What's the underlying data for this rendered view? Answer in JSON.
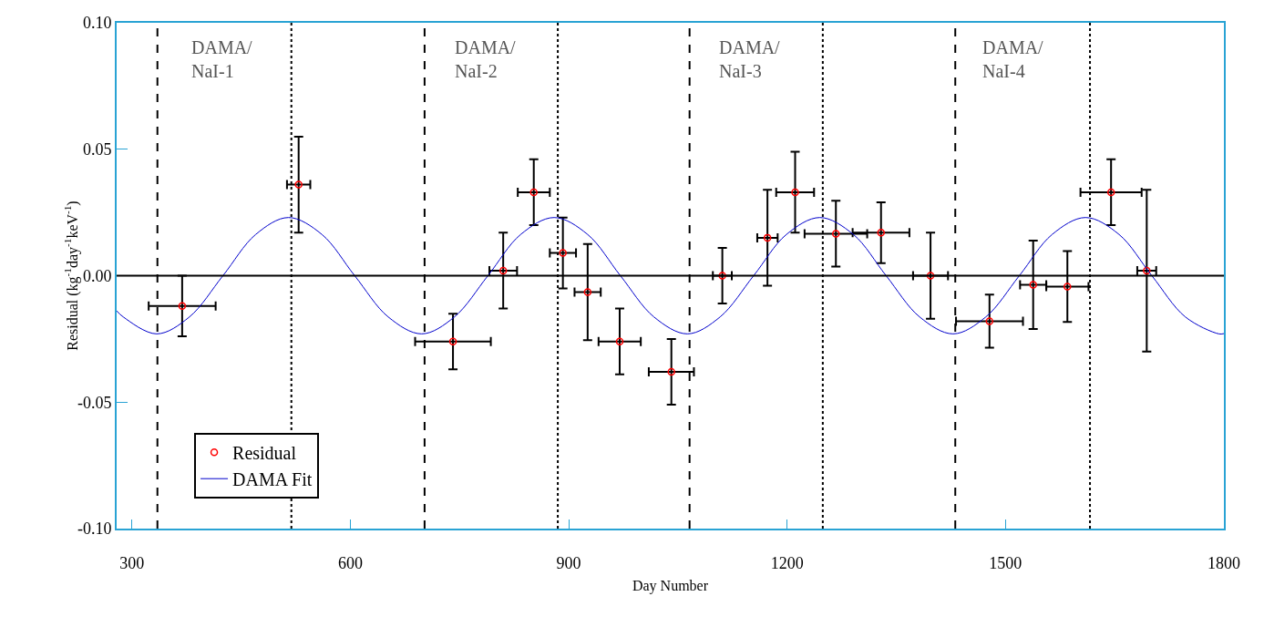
{
  "chart_data": {
    "type": "scatter",
    "xlabel": "Day Number",
    "ylabel": "Residual (kg$^{-1}$day$^{-1}$keV$^{-1}$)",
    "xlim": [
      279,
      1800
    ],
    "xticks": [
      300,
      600,
      900,
      1200,
      1500,
      1800
    ],
    "ylim": [
      -0.1,
      0.1
    ],
    "yticks": [
      {
        "value": -0.1,
        "label": "-0.10"
      },
      {
        "value": -0.05,
        "label": "-0.05"
      },
      {
        "value": 0,
        "label": "0.00"
      },
      {
        "value": 0.05,
        "label": "0.05"
      },
      {
        "value": 0.1,
        "label": "0.10"
      }
    ],
    "grid": false,
    "legend": "bottom left",
    "marker": "circle",
    "series": [
      {
        "name": "Residual",
        "color": "#ff0000",
        "x": [
          369,
          529,
          741,
          810,
          852,
          892,
          926,
          970,
          1041,
          1111,
          1173,
          1211,
          1267,
          1329,
          1397,
          1478,
          1538,
          1585,
          1645,
          1694
        ],
        "values": [
          -0.012,
          0.036,
          -0.026,
          0.002,
          0.033,
          0.009,
          -0.0065,
          -0.026,
          -0.038,
          0,
          0.015,
          0.033,
          0.0166,
          0.017,
          0,
          -0.018,
          -0.0036,
          -0.0043,
          0.033,
          0.002
        ],
        "errors": [
          0.012,
          0.019,
          0.011,
          0.015,
          0.013,
          0.014,
          0.019,
          0.013,
          0.013,
          0.011,
          0.019,
          0.016,
          0.013,
          0.012,
          0.017,
          0.0105,
          0.0175,
          0.014,
          0.013,
          0.032
        ],
        "xerrors": [
          46,
          16,
          52,
          19,
          22,
          18,
          18,
          29,
          31,
          13,
          14,
          26,
          43,
          39,
          24,
          46,
          18,
          29,
          42,
          13
        ]
      },
      {
        "name": "DAMA Fit",
        "type": "line",
        "color": "#0000cc",
        "marker": "none",
        "line_style": "solid",
        "x": [
          279,
          288,
          334,
          379,
          425,
          470,
          515,
          561,
          606,
          652,
          698,
          743,
          789,
          834,
          880,
          926,
          971,
          1017,
          1063,
          1108,
          1154,
          1199,
          1245,
          1291,
          1336,
          1382,
          1428,
          1473,
          1519,
          1564,
          1610,
          1656,
          1701,
          1747,
          1793,
          1800
        ],
        "values": [
          -0.0139,
          -0.0163,
          -0.023,
          -0.0163,
          0,
          0.0163,
          0.023,
          0.0163,
          0,
          -0.0163,
          -0.023,
          -0.0163,
          0,
          0.0163,
          0.023,
          0.0163,
          0,
          -0.0163,
          -0.023,
          -0.0163,
          0,
          0.0163,
          0.023,
          0.0163,
          0,
          -0.0163,
          -0.023,
          -0.0163,
          0,
          0.0163,
          0.023,
          0.0163,
          0,
          -0.0163,
          -0.023,
          -0.0229
        ]
      }
    ],
    "ref_lines": [
      {
        "axis": "y",
        "value": 0,
        "color": "#000000",
        "line_style": "solid"
      },
      {
        "axis": "x",
        "value": 335,
        "color": "#000000",
        "line_style": "dashed"
      },
      {
        "axis": "x",
        "value": 519,
        "color": "#000000",
        "line_style": "dotted"
      },
      {
        "axis": "x",
        "value": 702,
        "color": "#000000",
        "line_style": "dashed"
      },
      {
        "axis": "x",
        "value": 885,
        "color": "#000000",
        "line_style": "dotted"
      },
      {
        "axis": "x",
        "value": 1066,
        "color": "#000000",
        "line_style": "dashed"
      },
      {
        "axis": "x",
        "value": 1249,
        "color": "#000000",
        "line_style": "dotted"
      },
      {
        "axis": "x",
        "value": 1431,
        "color": "#000000",
        "line_style": "dashed"
      },
      {
        "axis": "x",
        "value": 1616,
        "color": "#000000",
        "line_style": "dotted"
      }
    ],
    "annotations": [
      "DAMA/\nNaI-1",
      "DAMA/\nNaI-2",
      "DAMA/\nNaI-3",
      "DAMA/\nNaI-4"
    ]
  }
}
